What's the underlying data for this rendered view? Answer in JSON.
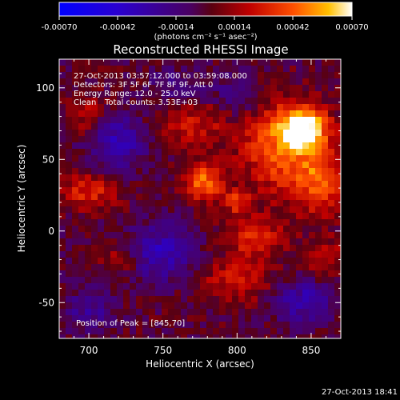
{
  "colorbar": {
    "ticks": [
      "-0.00070",
      "-0.00042",
      "-0.00014",
      "0.00014",
      "0.00042",
      "0.00070"
    ],
    "unit_label": "(photons cm⁻² s⁻¹ asec⁻²)",
    "vmin": -0.0007,
    "vmax": 0.0007
  },
  "chart_data": {
    "type": "heatmap",
    "title": "Reconstructed RHESSI Image",
    "xlabel": "Heliocentric X (arcsec)",
    "ylabel": "Heliocentric Y (arcsec)",
    "xlim": [
      680,
      870
    ],
    "ylim": [
      -75,
      120
    ],
    "xticks": [
      "700",
      "750",
      "800",
      "850"
    ],
    "yticks": [
      "100",
      "50",
      "0",
      "-50"
    ],
    "xtick_values": [
      700,
      750,
      800,
      850
    ],
    "ytick_values": [
      100,
      50,
      0,
      -50
    ],
    "grid": false,
    "colormap": "blue-purple-red-yellow-white",
    "annotations": {
      "time_range": "27-Oct-2013 03:57:12.000 to 03:59:08.000",
      "detectors": "Detectors: 3F 5F 6F 7F 8F 9F, Att 0",
      "energy": "Energy Range: 12.0 - 25.0 keV",
      "method": "Clean",
      "counts": "Total counts: 3.53E+03",
      "peak": "Position of Peak = [845,70]"
    },
    "peak": {
      "x": 845,
      "y": 70
    },
    "features": [
      {
        "x": 845,
        "y": 72,
        "sx": 11,
        "sy": 10,
        "amp": 1.3
      },
      {
        "x": 828,
        "y": 58,
        "sx": 18,
        "sy": 22,
        "amp": 0.75
      },
      {
        "x": 855,
        "y": 35,
        "sx": 12,
        "sy": 16,
        "amp": 0.7
      },
      {
        "x": 778,
        "y": 34,
        "sx": 9,
        "sy": 9,
        "amp": 0.85
      },
      {
        "x": 800,
        "y": 20,
        "sx": 6,
        "sy": 6,
        "amp": 0.6
      },
      {
        "x": 812,
        "y": -5,
        "sx": 14,
        "sy": 10,
        "amp": 0.55
      },
      {
        "x": 700,
        "y": 28,
        "sx": 14,
        "sy": 9,
        "amp": 0.55
      },
      {
        "x": 770,
        "y": 75,
        "sx": 16,
        "sy": 12,
        "amp": 0.45
      },
      {
        "x": 700,
        "y": 80,
        "sx": 10,
        "sy": 12,
        "amp": 0.35
      },
      {
        "x": 800,
        "y": -35,
        "sx": 18,
        "sy": 10,
        "amp": 0.45
      },
      {
        "x": 720,
        "y": -20,
        "sx": 10,
        "sy": 8,
        "amp": 0.35
      },
      {
        "x": 860,
        "y": -20,
        "sx": 10,
        "sy": 10,
        "amp": 0.4
      },
      {
        "x": 718,
        "y": 62,
        "sx": 14,
        "sy": 14,
        "amp": -0.6
      },
      {
        "x": 748,
        "y": -15,
        "sx": 16,
        "sy": 14,
        "amp": -0.6
      },
      {
        "x": 845,
        "y": -48,
        "sx": 14,
        "sy": 12,
        "amp": -0.55
      },
      {
        "x": 800,
        "y": 95,
        "sx": 12,
        "sy": 10,
        "amp": -0.35
      },
      {
        "x": 700,
        "y": -55,
        "sx": 12,
        "sy": 10,
        "amp": -0.4
      },
      {
        "x": 760,
        "y": 100,
        "sx": 14,
        "sy": 10,
        "amp": -0.3
      }
    ]
  },
  "timestamp": "27-Oct-2013 18:41"
}
